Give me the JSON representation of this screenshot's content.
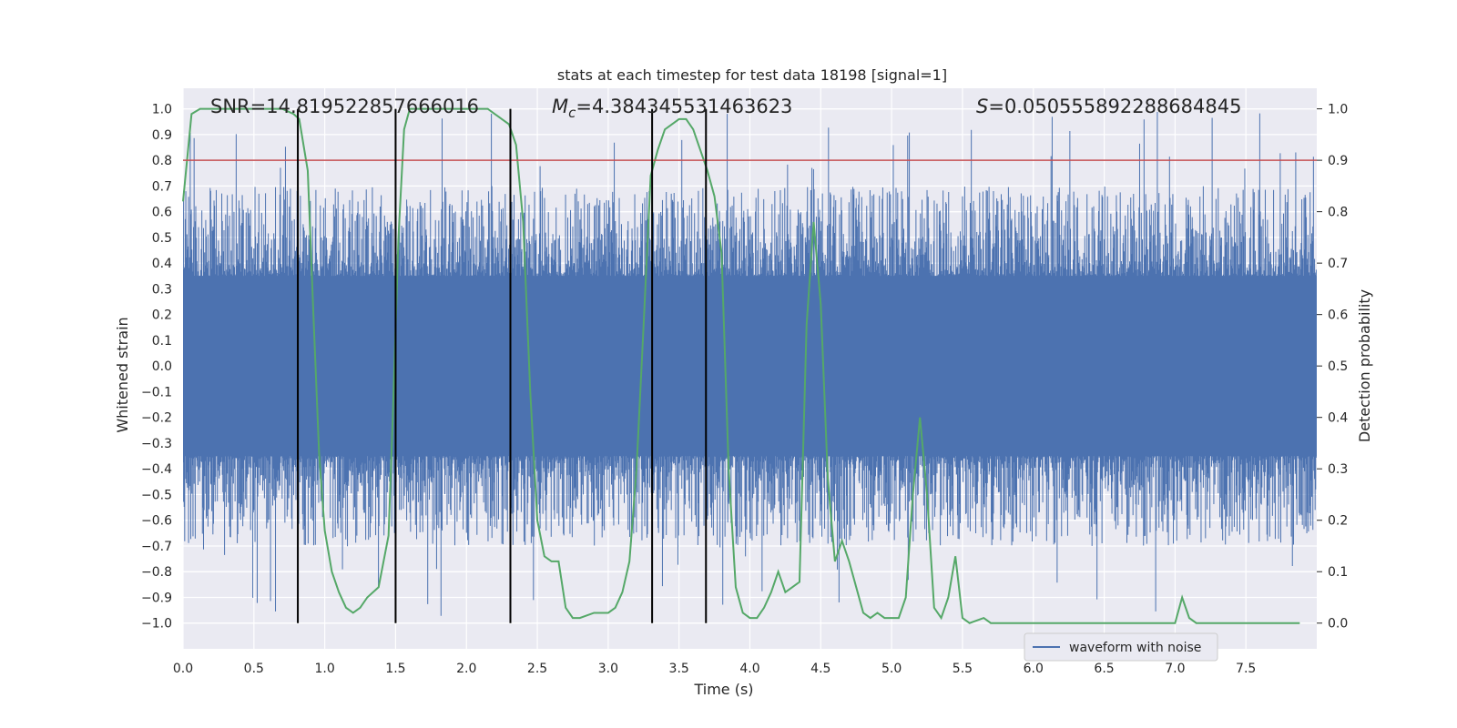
{
  "chart_data": {
    "type": "line",
    "title": "stats at each timestep for test data 18198 [signal=1]",
    "xlabel": "Time (s)",
    "ylabel_left": "Whitened strain",
    "ylabel_right": "Detection probability",
    "xlim": [
      0.0,
      8.0
    ],
    "ylim_left": [
      -1.1,
      1.08
    ],
    "ylim_right": [
      -0.05,
      1.04
    ],
    "xticks": [
      "0.0",
      "0.5",
      "1.0",
      "1.5",
      "2.0",
      "2.5",
      "3.0",
      "3.5",
      "4.0",
      "4.5",
      "5.0",
      "5.5",
      "6.0",
      "6.5",
      "7.0",
      "7.5"
    ],
    "yticks_left": [
      "1.0",
      "0.9",
      "0.8",
      "0.7",
      "0.6",
      "0.5",
      "0.4",
      "0.3",
      "0.2",
      "0.1",
      "0.0",
      "-0.1",
      "-0.2",
      "-0.3",
      "-0.4",
      "-0.5",
      "-0.6",
      "-0.7",
      "-0.8",
      "-0.9",
      "-1.0"
    ],
    "yticks_right": [
      "1.0",
      "0.9",
      "0.8",
      "0.7",
      "0.6",
      "0.5",
      "0.4",
      "0.3",
      "0.2",
      "0.1",
      "0.0"
    ],
    "annotations": {
      "snr": "SNR=14.819522857666016",
      "mc_symbol": "M",
      "mc_sub": "c",
      "mc_value": "=4.384345531463623",
      "s_symbol": "S",
      "s_value": "=0.050555892288684845"
    },
    "legend": {
      "label": "waveform with noise",
      "position": "lower-right"
    },
    "threshold": {
      "value": 0.9,
      "axis": "right",
      "color": "#c44e52"
    },
    "vlines_x": [
      0.81,
      1.5,
      2.31,
      3.31,
      3.69
    ],
    "vline_range_left": [
      -1.0,
      1.0
    ],
    "waveform": {
      "color": "#4c72b0",
      "n_samples": 2048,
      "core_amplitude": 0.35,
      "max_abs": 1.0
    },
    "detection_probability": {
      "color": "#55a868",
      "series": [
        [
          0.0,
          0.82
        ],
        [
          0.06,
          0.99
        ],
        [
          0.12,
          1.0
        ],
        [
          0.2,
          1.0
        ],
        [
          0.3,
          1.0
        ],
        [
          0.4,
          1.0
        ],
        [
          0.5,
          1.0
        ],
        [
          0.6,
          1.0
        ],
        [
          0.7,
          1.0
        ],
        [
          0.78,
          0.99
        ],
        [
          0.82,
          0.98
        ],
        [
          0.88,
          0.88
        ],
        [
          0.92,
          0.6
        ],
        [
          0.96,
          0.33
        ],
        [
          1.0,
          0.18
        ],
        [
          1.05,
          0.1
        ],
        [
          1.1,
          0.06
        ],
        [
          1.15,
          0.03
        ],
        [
          1.2,
          0.02
        ],
        [
          1.25,
          0.03
        ],
        [
          1.3,
          0.05
        ],
        [
          1.38,
          0.07
        ],
        [
          1.45,
          0.17
        ],
        [
          1.48,
          0.4
        ],
        [
          1.52,
          0.75
        ],
        [
          1.56,
          0.96
        ],
        [
          1.6,
          1.0
        ],
        [
          1.7,
          1.0
        ],
        [
          1.8,
          1.0
        ],
        [
          1.9,
          1.0
        ],
        [
          2.0,
          1.0
        ],
        [
          2.1,
          1.0
        ],
        [
          2.15,
          1.0
        ],
        [
          2.2,
          0.99
        ],
        [
          2.25,
          0.98
        ],
        [
          2.3,
          0.97
        ],
        [
          2.35,
          0.93
        ],
        [
          2.4,
          0.78
        ],
        [
          2.45,
          0.45
        ],
        [
          2.5,
          0.2
        ],
        [
          2.55,
          0.13
        ],
        [
          2.6,
          0.12
        ],
        [
          2.65,
          0.12
        ],
        [
          2.7,
          0.03
        ],
        [
          2.75,
          0.01
        ],
        [
          2.8,
          0.01
        ],
        [
          2.9,
          0.02
        ],
        [
          3.0,
          0.02
        ],
        [
          3.05,
          0.03
        ],
        [
          3.1,
          0.06
        ],
        [
          3.15,
          0.12
        ],
        [
          3.2,
          0.3
        ],
        [
          3.25,
          0.58
        ],
        [
          3.3,
          0.87
        ],
        [
          3.35,
          0.92
        ],
        [
          3.4,
          0.96
        ],
        [
          3.45,
          0.97
        ],
        [
          3.5,
          0.98
        ],
        [
          3.55,
          0.98
        ],
        [
          3.6,
          0.96
        ],
        [
          3.65,
          0.92
        ],
        [
          3.7,
          0.88
        ],
        [
          3.75,
          0.83
        ],
        [
          3.8,
          0.72
        ],
        [
          3.85,
          0.3
        ],
        [
          3.9,
          0.07
        ],
        [
          3.95,
          0.02
        ],
        [
          4.0,
          0.01
        ],
        [
          4.05,
          0.01
        ],
        [
          4.1,
          0.03
        ],
        [
          4.15,
          0.06
        ],
        [
          4.2,
          0.1
        ],
        [
          4.25,
          0.06
        ],
        [
          4.3,
          0.07
        ],
        [
          4.35,
          0.08
        ],
        [
          4.4,
          0.58
        ],
        [
          4.45,
          0.78
        ],
        [
          4.5,
          0.62
        ],
        [
          4.55,
          0.28
        ],
        [
          4.6,
          0.12
        ],
        [
          4.65,
          0.16
        ],
        [
          4.7,
          0.12
        ],
        [
          4.75,
          0.07
        ],
        [
          4.8,
          0.02
        ],
        [
          4.85,
          0.01
        ],
        [
          4.9,
          0.02
        ],
        [
          4.95,
          0.01
        ],
        [
          5.0,
          0.01
        ],
        [
          5.05,
          0.01
        ],
        [
          5.1,
          0.05
        ],
        [
          5.15,
          0.25
        ],
        [
          5.2,
          0.4
        ],
        [
          5.25,
          0.25
        ],
        [
          5.3,
          0.03
        ],
        [
          5.35,
          0.01
        ],
        [
          5.4,
          0.05
        ],
        [
          5.45,
          0.13
        ],
        [
          5.5,
          0.01
        ],
        [
          5.55,
          0.0
        ],
        [
          5.65,
          0.01
        ],
        [
          5.7,
          0.0
        ],
        [
          5.8,
          0.0
        ],
        [
          5.9,
          0.0
        ],
        [
          6.0,
          0.0
        ],
        [
          6.1,
          0.0
        ],
        [
          6.2,
          0.0
        ],
        [
          6.3,
          0.0
        ],
        [
          6.4,
          0.0
        ],
        [
          6.5,
          0.0
        ],
        [
          6.6,
          0.0
        ],
        [
          6.7,
          0.0
        ],
        [
          6.8,
          0.0
        ],
        [
          6.9,
          0.0
        ],
        [
          7.0,
          0.0
        ],
        [
          7.05,
          0.05
        ],
        [
          7.1,
          0.01
        ],
        [
          7.15,
          0.0
        ],
        [
          7.2,
          0.0
        ],
        [
          7.3,
          0.0
        ],
        [
          7.4,
          0.0
        ],
        [
          7.5,
          0.0
        ],
        [
          7.6,
          0.0
        ],
        [
          7.7,
          0.0
        ],
        [
          7.8,
          0.0
        ],
        [
          7.88,
          0.0
        ]
      ]
    }
  }
}
